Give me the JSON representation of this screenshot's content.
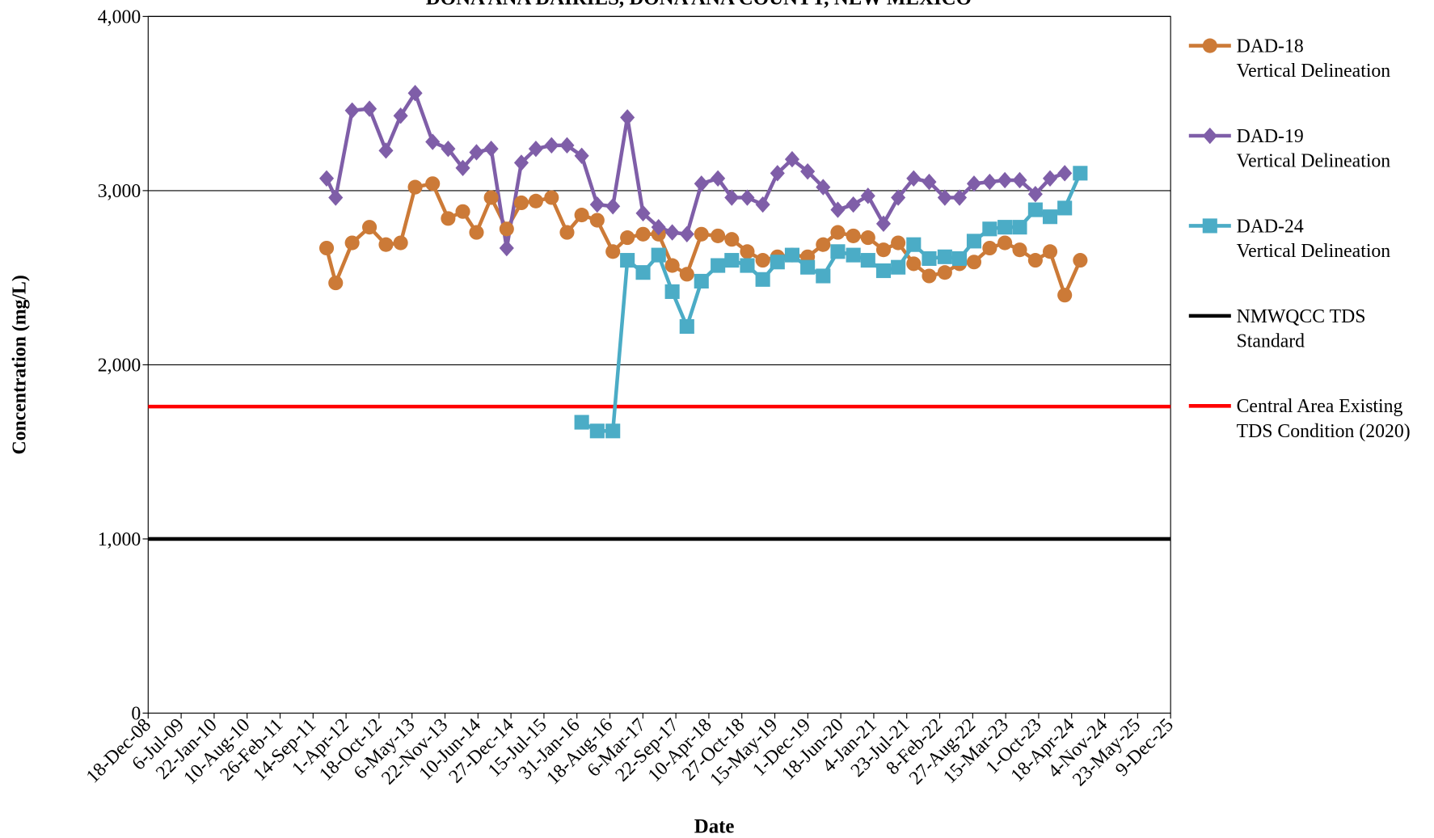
{
  "chart_data": {
    "type": "line",
    "title": "DONA ANA DAIRIES, DONA ANA COUNTY, NEW MEXICO",
    "x_label": "Date",
    "y_label": "Concentration  (mg/L)",
    "x": [
      "2011-12-05",
      "2012-01-29",
      "2012-05-08",
      "2012-08-21",
      "2012-11-29",
      "2013-02-26",
      "2013-05-25",
      "2013-09-08",
      "2013-12-11",
      "2014-03-10",
      "2014-06-01",
      "2014-08-29",
      "2014-12-01",
      "2015-02-28",
      "2015-05-27",
      "2015-08-30",
      "2015-12-02",
      "2016-02-29",
      "2016-06-02",
      "2016-09-05",
      "2016-12-02",
      "2017-03-07",
      "2017-06-09",
      "2017-08-31",
      "2017-11-28",
      "2018-02-24",
      "2018-06-04",
      "2018-08-27",
      "2018-11-29",
      "2019-03-03",
      "2019-05-31",
      "2019-08-28",
      "2019-11-30",
      "2020-03-03",
      "2020-05-31",
      "2020-09-02",
      "2020-11-30",
      "2021-03-04",
      "2021-06-01",
      "2021-09-03",
      "2021-12-06",
      "2022-03-11",
      "2022-06-08",
      "2022-09-04",
      "2022-12-08",
      "2023-03-10",
      "2023-06-08",
      "2023-09-11",
      "2023-12-09",
      "2024-03-07",
      "2024-06-09"
    ],
    "series": [
      {
        "name": "DAD-18\nVertical Delineation",
        "color": "#cc7a37",
        "marker": "circle",
        "values": [
          2670,
          2470,
          2700,
          2790,
          2690,
          2700,
          3020,
          3040,
          2840,
          2880,
          2760,
          2960,
          2780,
          2930,
          2940,
          2960,
          2760,
          2860,
          2830,
          2650,
          2730,
          2750,
          2750,
          2570,
          2520,
          2750,
          2740,
          2720,
          2650,
          2600,
          2620,
          2630,
          2620,
          2690,
          2760,
          2740,
          2730,
          2660,
          2700,
          2580,
          2510,
          2530,
          2580,
          2590,
          2670,
          2700,
          2660,
          2600,
          2650,
          2400,
          2600
        ]
      },
      {
        "name": "DAD-19\nVertical Delineation",
        "color": "#7f5ea8",
        "marker": "diamond",
        "values": [
          3070,
          2960,
          3460,
          3470,
          3230,
          3430,
          3560,
          3280,
          3240,
          3130,
          3220,
          3240,
          2670,
          3160,
          3240,
          3260,
          3260,
          3200,
          2920,
          2910,
          3420,
          2870,
          2790,
          2760,
          2750,
          3040,
          3070,
          2960,
          2960,
          2920,
          3100,
          3180,
          3110,
          3020,
          2890,
          2920,
          2970,
          2810,
          2960,
          3070,
          3050,
          2960,
          2960,
          3040,
          3050,
          3060,
          3060,
          2980,
          3070,
          3100,
          null
        ]
      },
      {
        "name": "DAD-24\nVertical Delineation",
        "color": "#4bacc6",
        "marker": "square",
        "values": [
          null,
          null,
          null,
          null,
          null,
          null,
          null,
          null,
          null,
          null,
          null,
          null,
          null,
          null,
          null,
          null,
          null,
          1670,
          1620,
          1620,
          2600,
          2530,
          2630,
          2420,
          2220,
          2480,
          2570,
          2600,
          2570,
          2490,
          2590,
          2630,
          2560,
          2510,
          2650,
          2630,
          2600,
          2540,
          2560,
          2690,
          2610,
          2620,
          2610,
          2710,
          2780,
          2790,
          2790,
          2890,
          2850,
          2900,
          3100
        ]
      }
    ],
    "reference_lines": [
      {
        "name": "NMWQCC TDS\nStandard",
        "value": 1000,
        "color": "#000000"
      },
      {
        "name": "Central Area Existing\nTDS Condition (2020)",
        "value": 1760,
        "color": "#ff0000"
      }
    ],
    "ylim": [
      0,
      4000
    ],
    "yticks": [
      0,
      {
        "value": 1000,
        "label": "1,000"
      },
      {
        "value": 2000,
        "label": "2,000"
      },
      {
        "value": 3000,
        "label": "3,000"
      },
      {
        "value": 4000,
        "label": "4,000"
      }
    ],
    "grid": true,
    "legend": "right",
    "xlim": [
      "2008-12-18",
      "2025-12-09"
    ],
    "xticks": [
      {
        "value": "2008-12-18",
        "label": "18-Dec-08"
      },
      {
        "value": "2009-07-06",
        "label": "6-Jul-09"
      },
      {
        "value": "2010-01-22",
        "label": "22-Jan-10"
      },
      {
        "value": "2010-08-10",
        "label": "10-Aug-10"
      },
      {
        "value": "2011-02-26",
        "label": "26-Feb-11"
      },
      {
        "value": "2011-09-14",
        "label": "14-Sep-11"
      },
      {
        "value": "2012-04-01",
        "label": "1-Apr-12"
      },
      {
        "value": "2012-10-18",
        "label": "18-Oct-12"
      },
      {
        "value": "2013-05-06",
        "label": "6-May-13"
      },
      {
        "value": "2013-11-22",
        "label": "22-Nov-13"
      },
      {
        "value": "2014-06-10",
        "label": "10-Jun-14"
      },
      {
        "value": "2014-12-27",
        "label": "27-Dec-14"
      },
      {
        "value": "2015-07-15",
        "label": "15-Jul-15"
      },
      {
        "value": "2016-01-31",
        "label": "31-Jan-16"
      },
      {
        "value": "2016-08-18",
        "label": "18-Aug-16"
      },
      {
        "value": "2017-03-06",
        "label": "6-Mar-17"
      },
      {
        "value": "2017-09-22",
        "label": "22-Sep-17"
      },
      {
        "value": "2018-04-10",
        "label": "10-Apr-18"
      },
      {
        "value": "2018-10-27",
        "label": "27-Oct-18"
      },
      {
        "value": "2019-05-15",
        "label": "15-May-19"
      },
      {
        "value": "2019-12-01",
        "label": "1-Dec-19"
      },
      {
        "value": "2020-06-18",
        "label": "18-Jun-20"
      },
      {
        "value": "2021-01-04",
        "label": "4-Jan-21"
      },
      {
        "value": "2021-07-23",
        "label": "23-Jul-21"
      },
      {
        "value": "2022-02-08",
        "label": "8-Feb-22"
      },
      {
        "value": "2022-08-27",
        "label": "27-Aug-22"
      },
      {
        "value": "2023-03-15",
        "label": "15-Mar-23"
      },
      {
        "value": "2023-10-01",
        "label": "1-Oct-23"
      },
      {
        "value": "2024-04-18",
        "label": "18-Apr-24"
      },
      {
        "value": "2024-11-04",
        "label": "4-Nov-24"
      },
      {
        "value": "2025-05-23",
        "label": "23-May-25"
      },
      {
        "value": "2025-12-09",
        "label": "9-Dec-25"
      }
    ]
  }
}
